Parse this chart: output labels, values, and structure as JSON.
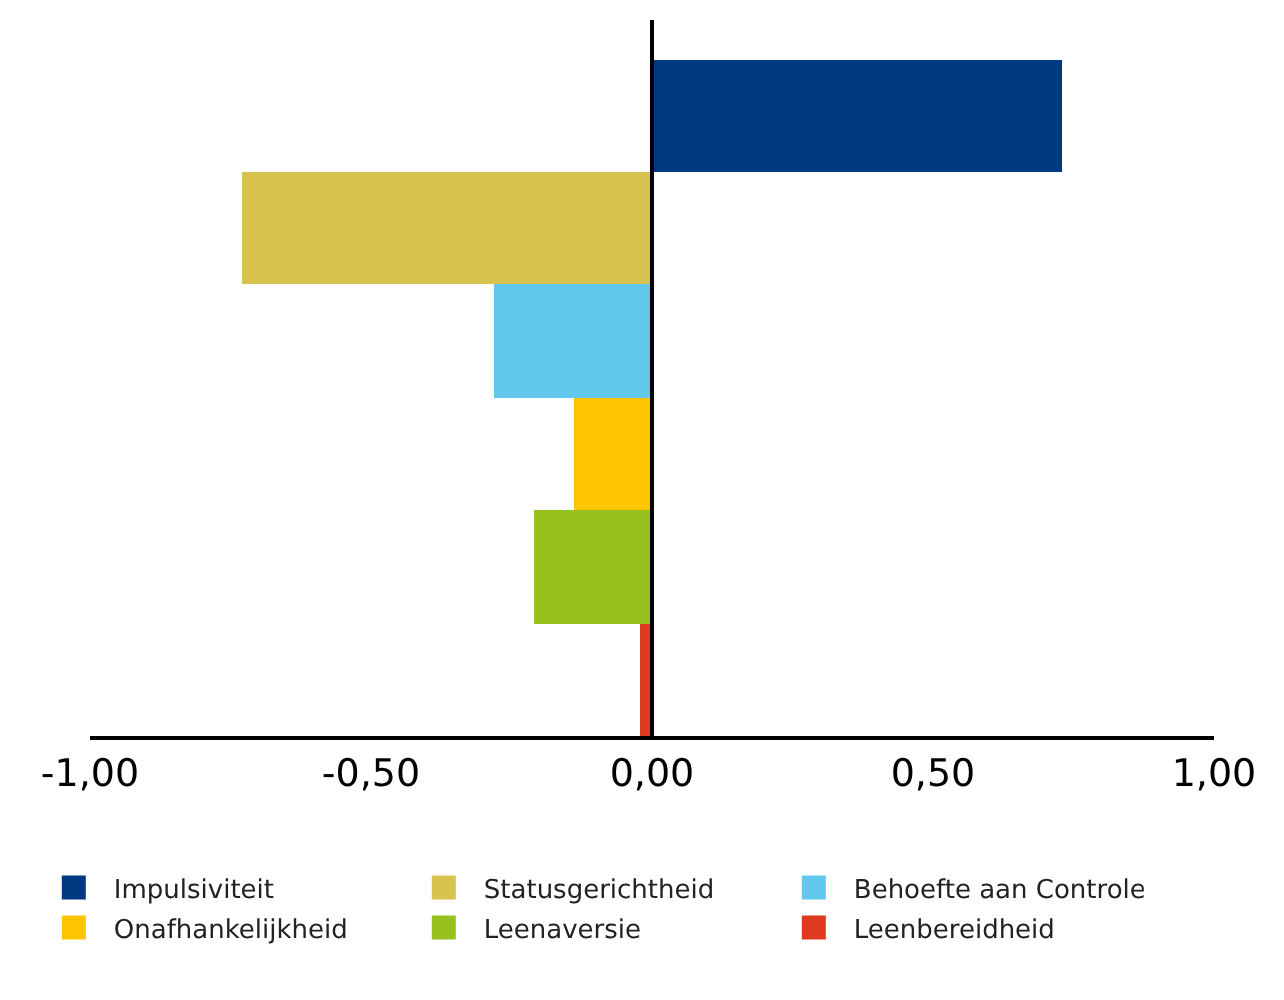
{
  "chart_data": {
    "type": "bar",
    "orientation": "horizontal",
    "categories": [
      null,
      null,
      null,
      null,
      null,
      null
    ],
    "series": [
      {
        "name": "Impulsiviteit",
        "color": "#003882",
        "values": [
          0.73,
          null,
          null,
          null,
          null,
          null
        ]
      },
      {
        "name": "Statusgerichtheid",
        "color": "#d8c34e",
        "values": [
          null,
          -0.73,
          null,
          null,
          null,
          null
        ]
      },
      {
        "name": "Behoefte aan Controle",
        "color": "#63c8ee",
        "values": [
          null,
          null,
          -0.28,
          null,
          null,
          null
        ]
      },
      {
        "name": "Onafhankelijkheid",
        "color": "#fdc500",
        "values": [
          null,
          null,
          null,
          -0.14,
          null,
          null
        ]
      },
      {
        "name": "Leenaversie",
        "color": "#96c11f",
        "values": [
          null,
          null,
          null,
          null,
          -0.21,
          null
        ]
      },
      {
        "name": "Leenbereidheid",
        "color": "#e03a1e",
        "values": [
          null,
          null,
          null,
          null,
          null,
          -0.02
        ]
      }
    ],
    "xlim": [
      -1,
      1
    ],
    "xticks": [
      {
        "value": -1,
        "label": "-1,00"
      },
      {
        "value": -0.5,
        "label": "-0,50"
      },
      {
        "value": 0,
        "label": "0,00"
      },
      {
        "value": 0.5,
        "label": "0,50"
      },
      {
        "value": 1,
        "label": "1,00"
      }
    ],
    "ref_lines": [
      {
        "axis": "x",
        "value": 0,
        "color": "#000000"
      }
    ],
    "grid": false,
    "legend": "bottom"
  }
}
